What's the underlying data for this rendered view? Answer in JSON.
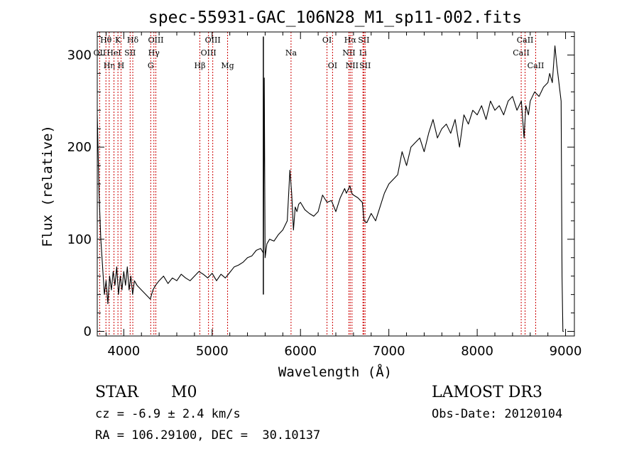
{
  "colors": {
    "spectrum": "#000000",
    "lines": "#cc0000",
    "axes": "#000000",
    "background": "#ffffff"
  },
  "chart_data": {
    "type": "line",
    "title": "spec-55931-GAC_106N28_M1_sp11-002.fits",
    "xlabel": "Wavelength (Å)",
    "ylabel": "Flux (relative)",
    "xlim": [
      3700,
      9100
    ],
    "ylim": [
      -5,
      325
    ],
    "xticks": [
      4000,
      5000,
      6000,
      7000,
      8000,
      9000
    ],
    "yticks": [
      0,
      100,
      200,
      300
    ],
    "grid": false,
    "series": [
      {
        "name": "flux",
        "x": [
          3700,
          3720,
          3740,
          3760,
          3780,
          3800,
          3820,
          3840,
          3860,
          3880,
          3900,
          3920,
          3940,
          3960,
          3980,
          4000,
          4020,
          4040,
          4060,
          4080,
          4100,
          4120,
          4150,
          4200,
          4250,
          4300,
          4330,
          4360,
          4400,
          4450,
          4500,
          4550,
          4600,
          4650,
          4700,
          4750,
          4800,
          4850,
          4900,
          4950,
          5000,
          5050,
          5100,
          5150,
          5200,
          5250,
          5300,
          5350,
          5400,
          5450,
          5500,
          5550,
          5580,
          5590,
          5600,
          5620,
          5650,
          5700,
          5750,
          5800,
          5850,
          5880,
          5900,
          5920,
          5940,
          5960,
          5980,
          6000,
          6050,
          6100,
          6150,
          6200,
          6250,
          6300,
          6350,
          6400,
          6450,
          6500,
          6520,
          6560,
          6580,
          6600,
          6650,
          6700,
          6720,
          6750,
          6800,
          6850,
          6900,
          6950,
          7000,
          7050,
          7100,
          7150,
          7200,
          7250,
          7300,
          7350,
          7400,
          7450,
          7500,
          7550,
          7600,
          7650,
          7700,
          7750,
          7800,
          7850,
          7900,
          7950,
          8000,
          8050,
          8100,
          8150,
          8200,
          8250,
          8300,
          8350,
          8400,
          8450,
          8500,
          8530,
          8550,
          8580,
          8600,
          8650,
          8700,
          8750,
          8800,
          8820,
          8850,
          8880,
          8900,
          8950,
          8960,
          8970,
          8980
        ],
        "values": [
          235,
          150,
          100,
          70,
          40,
          55,
          30,
          60,
          45,
          65,
          50,
          70,
          40,
          60,
          45,
          65,
          50,
          70,
          45,
          60,
          40,
          55,
          50,
          45,
          40,
          35,
          45,
          50,
          55,
          60,
          52,
          58,
          55,
          62,
          58,
          55,
          60,
          65,
          62,
          58,
          63,
          55,
          62,
          58,
          64,
          70,
          72,
          75,
          80,
          82,
          88,
          90,
          85,
          275,
          80,
          95,
          100,
          98,
          105,
          110,
          120,
          175,
          150,
          110,
          135,
          130,
          138,
          140,
          132,
          128,
          125,
          130,
          148,
          140,
          142,
          130,
          145,
          155,
          150,
          158,
          150,
          148,
          145,
          140,
          120,
          118,
          128,
          120,
          135,
          150,
          160,
          165,
          170,
          195,
          180,
          200,
          205,
          210,
          195,
          215,
          230,
          210,
          220,
          225,
          215,
          230,
          200,
          235,
          225,
          240,
          235,
          245,
          230,
          250,
          240,
          245,
          235,
          250,
          255,
          240,
          250,
          210,
          245,
          235,
          250,
          260,
          255,
          265,
          270,
          280,
          270,
          310,
          290,
          250,
          60,
          0,
          0
        ]
      }
    ],
    "spike": {
      "x": 5580,
      "low": 40,
      "high": 320
    },
    "line_markers": [
      {
        "name": "OII",
        "wavelength": 3727,
        "row": 2
      },
      {
        "name": "Hθ",
        "wavelength": 3798,
        "row": 1
      },
      {
        "name": "Hη",
        "wavelength": 3835,
        "row": 3
      },
      {
        "name": "HeI",
        "wavelength": 3889,
        "row": 2
      },
      {
        "name": "K",
        "wavelength": 3934,
        "row": 1
      },
      {
        "name": "H",
        "wavelength": 3969,
        "row": 3
      },
      {
        "name": "SII",
        "wavelength": 4072,
        "row": 2
      },
      {
        "name": "Hδ",
        "wavelength": 4102,
        "row": 1
      },
      {
        "name": "G",
        "wavelength": 4305,
        "row": 3
      },
      {
        "name": "Hγ",
        "wavelength": 4341,
        "row": 2
      },
      {
        "name": "OIII",
        "wavelength": 4363,
        "row": 1
      },
      {
        "name": "Hβ",
        "wavelength": 4861,
        "row": 3
      },
      {
        "name": "OIII",
        "wavelength": 4959,
        "row": 2
      },
      {
        "name": "OIII",
        "wavelength": 5007,
        "row": 1
      },
      {
        "name": "Mg",
        "wavelength": 5175,
        "row": 3
      },
      {
        "name": "Na",
        "wavelength": 5893,
        "row": 2
      },
      {
        "name": "OI",
        "wavelength": 6300,
        "row": 1
      },
      {
        "name": "OI",
        "wavelength": 6363,
        "row": 3
      },
      {
        "name": "NII",
        "wavelength": 6548,
        "row": 2
      },
      {
        "name": "Hα",
        "wavelength": 6563,
        "row": 1
      },
      {
        "name": "NII",
        "wavelength": 6583,
        "row": 3
      },
      {
        "name": "Li",
        "wavelength": 6707,
        "row": 2
      },
      {
        "name": "SII",
        "wavelength": 6716,
        "row": 1
      },
      {
        "name": "SII",
        "wavelength": 6731,
        "row": 3
      },
      {
        "name": "CaII",
        "wavelength": 8498,
        "row": 2
      },
      {
        "name": "CaII",
        "wavelength": 8542,
        "row": 1
      },
      {
        "name": "CaII",
        "wavelength": 8662,
        "row": 3
      }
    ]
  },
  "info": {
    "class_label": "STAR",
    "subclass": "M0",
    "redshift_text": "cz = -6.9 ± 2.4 km/s",
    "coords_text": "RA = 106.29100, DEC =  30.10137",
    "survey": "LAMOST DR3",
    "obs_date": "Obs-Date: 20120104"
  }
}
